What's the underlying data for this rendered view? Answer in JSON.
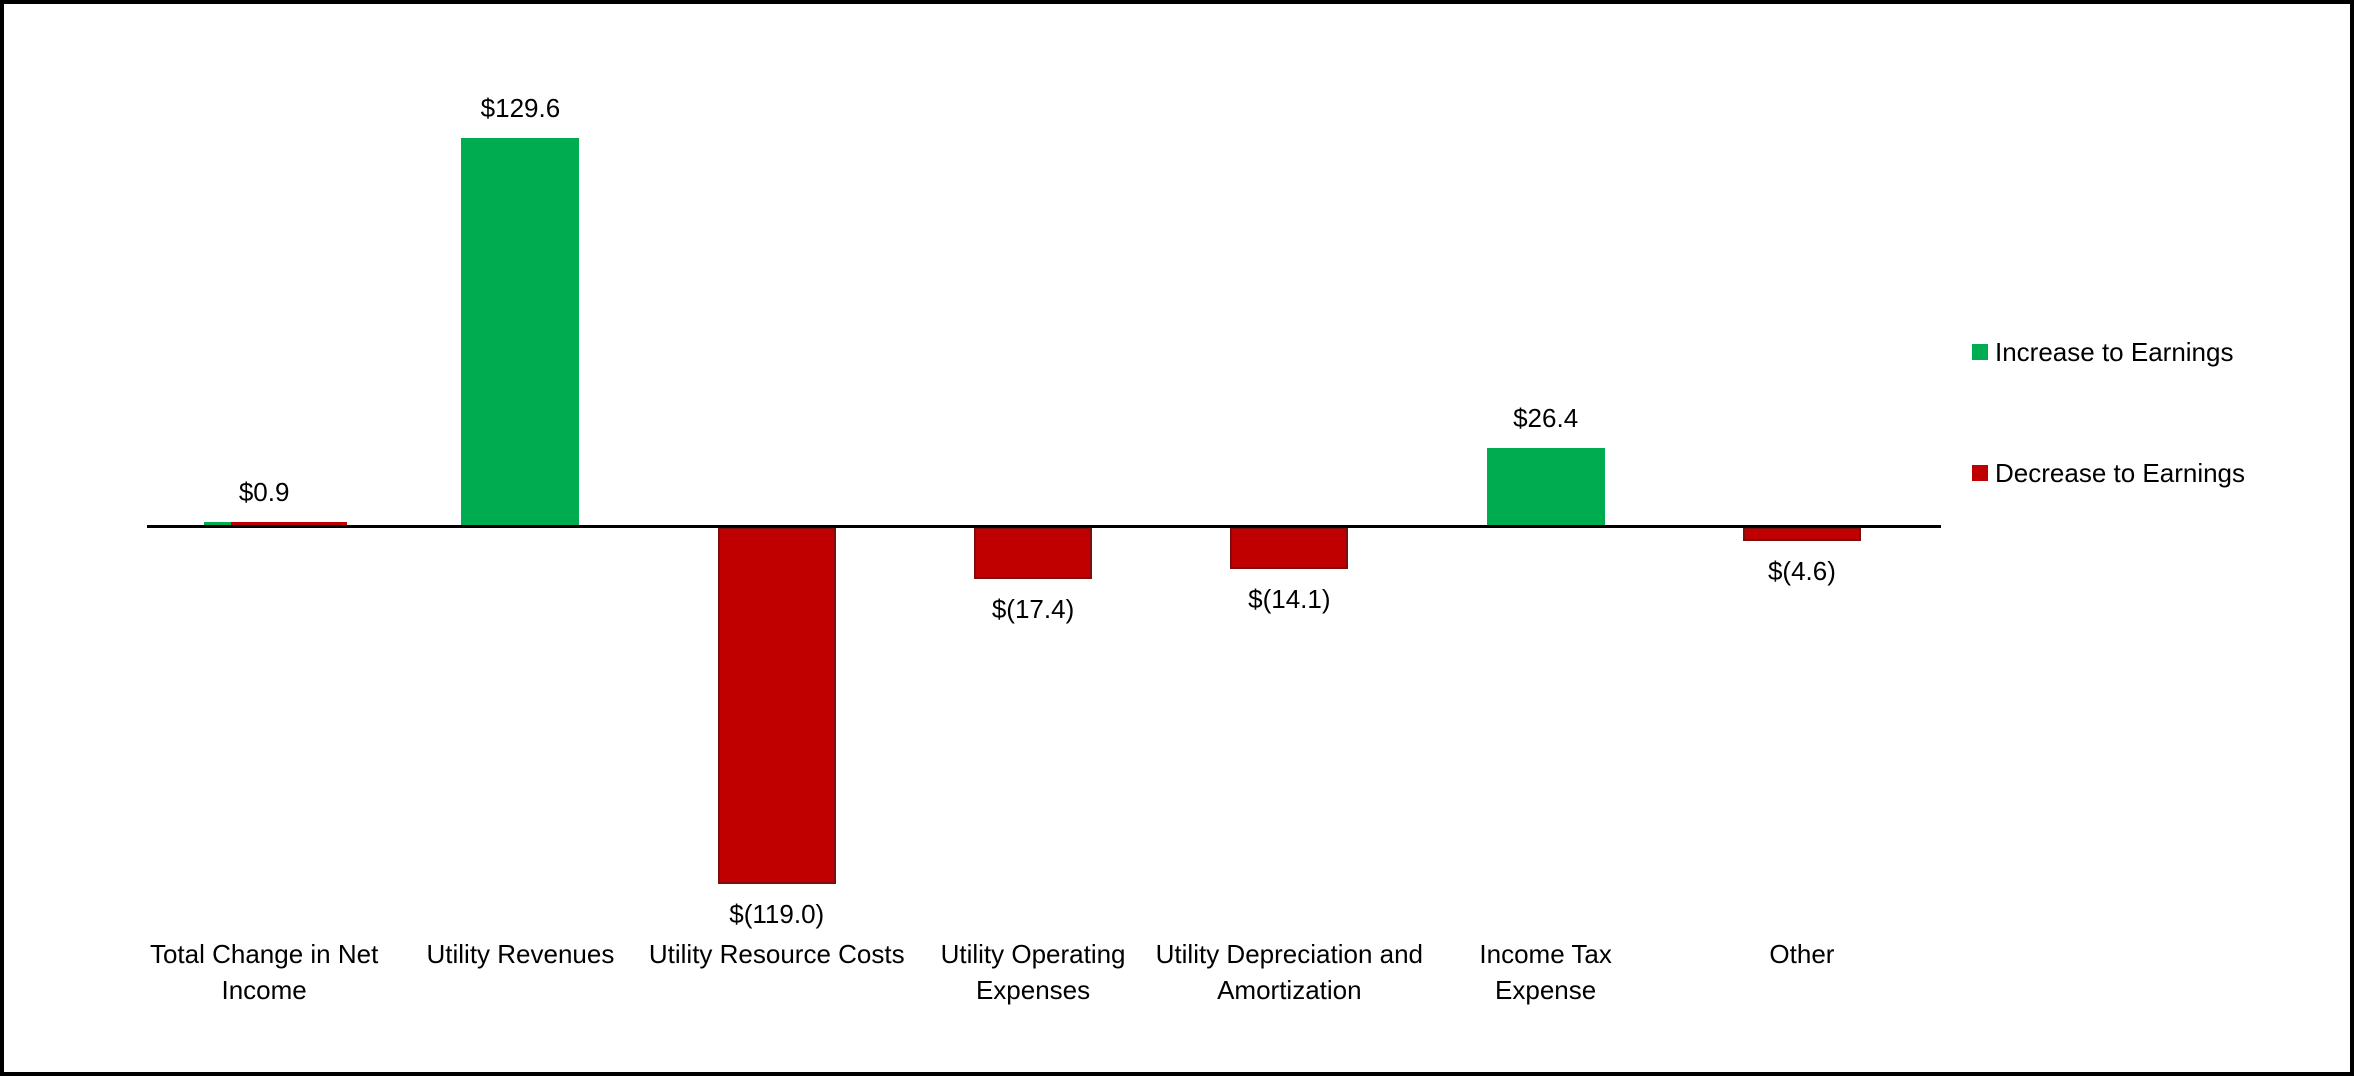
{
  "chart_data": {
    "type": "bar",
    "title": "",
    "orientation": "vertical",
    "gridlines": false,
    "y_axis_visible": false,
    "x_axis_line_visible": true,
    "baseline": 0,
    "ylim": [
      -130,
      140
    ],
    "legend_position": "right",
    "colors": {
      "increase": "#00AC50",
      "decrease": "#C00000",
      "decrease_border": "#7E0D0D",
      "axis": "#000000",
      "text": "#000000",
      "background": "#FFFFFF",
      "frame_border": "#000000"
    },
    "categories": [
      "Total Change in Net Income",
      "Utility Revenues",
      "Utility Resource Costs",
      "Utility Operating Expenses",
      "Utility Depreciation and Amortization",
      "Income Tax Expense",
      "Other"
    ],
    "values": [
      0.9,
      129.6,
      -119.0,
      -17.4,
      -14.1,
      26.4,
      -4.6
    ],
    "points": [
      {
        "category": "Total Change in Net Income",
        "category_lines": [
          "Total Change in Net",
          "Income"
        ],
        "value": 0.9,
        "value_label": "$0.9",
        "direction": "mixed"
      },
      {
        "category": "Utility Revenues",
        "category_lines": [
          "Utility Revenues"
        ],
        "value": 129.6,
        "value_label": "$129.6",
        "direction": "increase"
      },
      {
        "category": "Utility Resource Costs",
        "category_lines": [
          "Utility Resource Costs"
        ],
        "value": -119.0,
        "value_label": "$(119.0)",
        "direction": "decrease"
      },
      {
        "category": "Utility Operating Expenses",
        "category_lines": [
          "Utility Operating",
          "Expenses"
        ],
        "value": -17.4,
        "value_label": "$(17.4)",
        "direction": "decrease"
      },
      {
        "category": "Utility Depreciation and Amortization",
        "category_lines": [
          "Utility Depreciation and",
          "Amortization"
        ],
        "value": -14.1,
        "value_label": "$(14.1)",
        "direction": "decrease"
      },
      {
        "category": "Income Tax Expense",
        "category_lines": [
          "Income Tax",
          "Expense"
        ],
        "value": 26.4,
        "value_label": "$26.4",
        "direction": "increase"
      },
      {
        "category": "Other",
        "category_lines": [
          "Other"
        ],
        "value": -4.6,
        "value_label": "$(4.6)",
        "direction": "decrease"
      }
    ],
    "legend": [
      {
        "label": "Increase to Earnings",
        "color": "#00AC50"
      },
      {
        "label": "Decrease to Earnings",
        "color": "#C00000"
      }
    ]
  }
}
